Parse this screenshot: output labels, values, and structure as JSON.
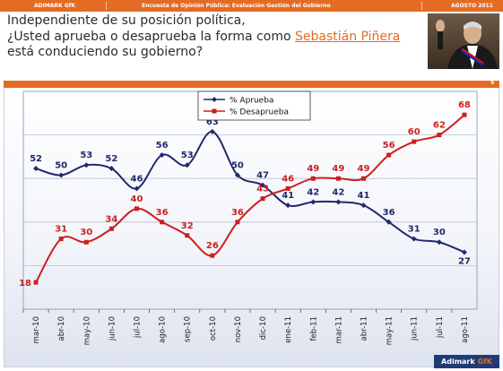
{
  "header": {
    "brand": "ADIMARK GfK",
    "title": "Encuesta de Opinión Pública: Evaluación Gestión del Gobierno",
    "date": "AGOSTO 2011"
  },
  "question": {
    "line1": "Independiente de su posición política,",
    "line2_prefix": "¿Usted aprueba o desaprueba la forma como ",
    "line2_name": "Sebastián Piñera",
    "line3": "está conduciendo su gobierno?"
  },
  "page_number": "9",
  "footer_logo": {
    "brand": "Adimark",
    "gfk": "GfK"
  },
  "colors": {
    "orange": "#e46b24",
    "approve": "#1f2a6b",
    "disapprove": "#cc1f1f",
    "navy": "#1f3b77"
  },
  "chart_data": {
    "type": "line",
    "categories": [
      "mar-10",
      "abr-10",
      "may-10",
      "jun-10",
      "jul-10",
      "ago-10",
      "sep-10",
      "oct-10",
      "nov-10",
      "dic-10",
      "ene-11",
      "feb-11",
      "mar-11",
      "abr-11",
      "may-11",
      "jun-11",
      "jul-11",
      "ago-11"
    ],
    "series": [
      {
        "name": "% Aprueba",
        "color": "#1f2a6b",
        "values": [
          52,
          50,
          53,
          52,
          46,
          56,
          53,
          63,
          50,
          47,
          41,
          42,
          42,
          41,
          36,
          31,
          30,
          27
        ]
      },
      {
        "name": "% Desaprueba",
        "color": "#cc1f1f",
        "values": [
          18,
          31,
          30,
          34,
          40,
          36,
          32,
          26,
          36,
          43,
          46,
          49,
          49,
          49,
          56,
          60,
          62,
          68
        ]
      }
    ],
    "ylim": [
      10,
      75
    ],
    "grid": true,
    "legend": "top-center"
  }
}
